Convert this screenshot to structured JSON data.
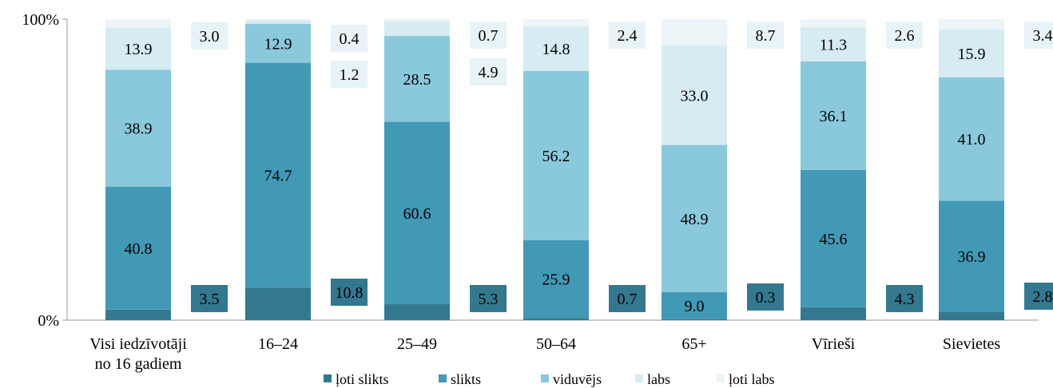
{
  "chart_data": {
    "type": "bar",
    "stacked": true,
    "categories": [
      [
        "Visi iedzīvotāji",
        "no 16 gadiem"
      ],
      [
        "16–24"
      ],
      [
        "25–49"
      ],
      [
        "50–64"
      ],
      [
        "65+"
      ],
      [
        "Vīrieši"
      ],
      [
        "Sievietes"
      ]
    ],
    "series": [
      {
        "name": "ļoti slikts",
        "color": "#33788f",
        "values": [
          3.5,
          10.8,
          5.3,
          0.7,
          0.3,
          4.3,
          2.8
        ]
      },
      {
        "name": "slikts",
        "color": "#4299b5",
        "values": [
          40.8,
          74.7,
          60.6,
          25.9,
          9.0,
          45.6,
          36.9
        ]
      },
      {
        "name": "viduvējs",
        "color": "#8ac8dc",
        "values": [
          38.9,
          12.9,
          28.5,
          56.2,
          48.9,
          36.1,
          41.0
        ]
      },
      {
        "name": "labs",
        "color": "#d6ebf2",
        "values": [
          13.9,
          1.2,
          4.9,
          14.8,
          33.0,
          11.3,
          15.9
        ]
      },
      {
        "name": "ļoti labs",
        "color": "#ecf4f8",
        "values": [
          3.0,
          0.4,
          0.7,
          2.4,
          8.7,
          2.6,
          3.4
        ]
      }
    ],
    "y_ticks": [
      "0%",
      "100%"
    ],
    "ylim": [
      0,
      100
    ],
    "legend_position": "bottom"
  }
}
